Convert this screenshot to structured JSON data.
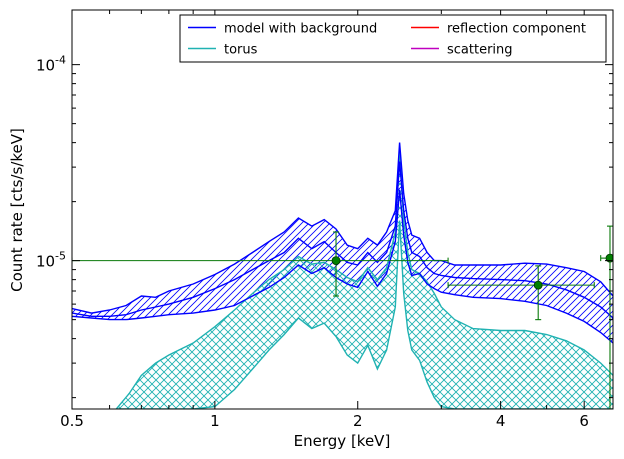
{
  "chart_data": {
    "type": "line",
    "title": "",
    "xlabel": "Energy [keV]",
    "ylabel": "Count rate [cts/s/keV]",
    "xscale": "log",
    "yscale": "log",
    "xlim": [
      0.5,
      6.9
    ],
    "ylim": [
      1.75e-06,
      0.00019
    ],
    "grid": false,
    "legend_position": "top-right",
    "x_ticks": [
      {
        "value": 0.5,
        "label": "0.5"
      },
      {
        "value": 1,
        "label": "1"
      },
      {
        "value": 2,
        "label": "2"
      },
      {
        "value": 4,
        "label": "4"
      },
      {
        "value": 6,
        "label": "6"
      }
    ],
    "y_ticks": [
      {
        "value": 1e-05,
        "base": "10",
        "exp": "-5"
      },
      {
        "value": 0.0001,
        "base": "10",
        "exp": "-4"
      }
    ],
    "legend": [
      {
        "label": "model with background",
        "color": "#0000ff"
      },
      {
        "label": "torus",
        "color": "#20b2b2"
      },
      {
        "label": "reflection component",
        "color": "#ff0000"
      },
      {
        "label": "scattering",
        "color": "#bf00bf"
      }
    ],
    "series": [
      {
        "name": "model with background",
        "color": "#0000ff",
        "style": "hatched-band",
        "x": [
          0.5,
          0.55,
          0.6,
          0.65,
          0.7,
          0.75,
          0.8,
          0.9,
          1.0,
          1.1,
          1.2,
          1.3,
          1.4,
          1.5,
          1.6,
          1.7,
          1.8,
          1.9,
          2.0,
          2.1,
          2.2,
          2.3,
          2.4,
          2.45,
          2.5,
          2.55,
          2.6,
          2.7,
          2.8,
          2.9,
          3.0,
          3.2,
          3.5,
          4.0,
          4.5,
          5.0,
          5.5,
          6.0,
          6.5,
          6.9
        ],
        "upper": [
          5.7e-06,
          5.4e-06,
          5.6e-06,
          5.9e-06,
          6.6e-06,
          6.5e-06,
          7e-06,
          7.6e-06,
          8.5e-06,
          9.6e-06,
          1.1e-05,
          1.25e-05,
          1.4e-05,
          1.65e-05,
          1.5e-05,
          1.62e-05,
          1.45e-05,
          1.2e-05,
          1.15e-05,
          1.3e-05,
          1.2e-05,
          1.4e-05,
          1.8e-05,
          4e-05,
          2.2e-05,
          1.6e-05,
          1.35e-05,
          1.3e-05,
          1.1e-05,
          1e-05,
          1e-05,
          9.5e-06,
          9.5e-06,
          9.5e-06,
          9.7e-06,
          9.6e-06,
          9.2e-06,
          8.8e-06,
          7.8e-06,
          6.6e-06
        ],
        "lower": [
          5.2e-06,
          5.1e-06,
          5e-06,
          5e-06,
          5.1e-06,
          5.2e-06,
          5.3e-06,
          5.4e-06,
          5.6e-06,
          5.9e-06,
          6.6e-06,
          7.3e-06,
          8.2e-06,
          9.5e-06,
          8.6e-06,
          9.2e-06,
          8.2e-06,
          7.6e-06,
          7.3e-06,
          8.8e-06,
          7.4e-06,
          8.6e-06,
          1.25e-05,
          2.3e-05,
          1.35e-05,
          9.8e-06,
          8.4e-06,
          8.6e-06,
          7.6e-06,
          7.2e-06,
          6.9e-06,
          6.7e-06,
          6.5e-06,
          6.4e-06,
          6.2e-06,
          5.9e-06,
          5.4e-06,
          4.9e-06,
          4.3e-06,
          3.8e-06
        ],
        "mid": [
          5.4e-06,
          5.2e-06,
          5.2e-06,
          5.3e-06,
          5.6e-06,
          5.8e-06,
          6e-06,
          6.5e-06,
          7.2e-06,
          8e-06,
          9e-06,
          1e-05,
          1.1e-05,
          1.3e-05,
          1.15e-05,
          1.25e-05,
          1.1e-05,
          9.8e-06,
          9.5e-06,
          1.1e-05,
          9.8e-06,
          1.1e-05,
          1.5e-05,
          3.2e-05,
          1.8e-05,
          1.3e-05,
          1.1e-05,
          1.05e-05,
          9.2e-06,
          8.6e-06,
          8.4e-06,
          8.2e-06,
          8.1e-06,
          8e-06,
          7.9e-06,
          7.6e-06,
          7.1e-06,
          6.5e-06,
          5.8e-06,
          5.1e-06
        ]
      },
      {
        "name": "torus",
        "color": "#20b2b2",
        "style": "crosshatched-band",
        "x": [
          0.62,
          0.66,
          0.7,
          0.75,
          0.8,
          0.9,
          1.0,
          1.1,
          1.2,
          1.3,
          1.4,
          1.5,
          1.6,
          1.7,
          1.8,
          1.9,
          2.0,
          2.1,
          2.2,
          2.3,
          2.4,
          2.45,
          2.5,
          2.55,
          2.6,
          2.7,
          2.8,
          2.9,
          3.0,
          3.2,
          3.5,
          4.0,
          4.5,
          5.0,
          5.5,
          6.0,
          6.5,
          6.9
        ],
        "upper": [
          1.75e-06,
          2.1e-06,
          2.6e-06,
          3e-06,
          3.3e-06,
          3.8e-06,
          4.6e-06,
          5.6e-06,
          6.8e-06,
          8e-06,
          9e-06,
          1.05e-05,
          9.6e-06,
          9.8e-06,
          9e-06,
          8.2e-06,
          7.8e-06,
          9.2e-06,
          8e-06,
          9.2e-06,
          1.4e-05,
          3.6e-05,
          1.6e-05,
          1.1e-05,
          9e-06,
          8.6e-06,
          7.8e-06,
          6.8e-06,
          5.8e-06,
          5e-06,
          4.5e-06,
          4.4e-06,
          4.4e-06,
          4.2e-06,
          3.9e-06,
          3.5e-06,
          3e-06,
          2.6e-06
        ],
        "lower": [
          1.75e-06,
          1.75e-06,
          1.75e-06,
          1.75e-06,
          1.75e-06,
          1.75e-06,
          1.8e-06,
          2.2e-06,
          2.8e-06,
          3.5e-06,
          4.2e-06,
          5.1e-06,
          4.5e-06,
          4.8e-06,
          4.1e-06,
          3.3e-06,
          3e-06,
          3.7e-06,
          2.8e-06,
          3.5e-06,
          5.8e-06,
          1.6e-05,
          6.8e-06,
          4.4e-06,
          3.5e-06,
          3.1e-06,
          2.4e-06,
          2e-06,
          1.8e-06,
          1.75e-06,
          1.75e-06,
          1.75e-06,
          1.75e-06,
          1.75e-06,
          1.75e-06,
          1.75e-06,
          1.75e-06,
          1.75e-06
        ]
      }
    ],
    "points": [
      {
        "x": 1.8,
        "y": 1e-05,
        "x_err": [
          0.5,
          3.1
        ],
        "y_err": [
          6.6e-06,
          1.4e-05
        ],
        "color": "#0a7a0a"
      },
      {
        "x": 4.8,
        "y": 7.5e-06,
        "x_err": [
          3.1,
          6.3
        ],
        "y_err": [
          5e-06,
          9.4e-06
        ],
        "color": "#0a7a0a"
      },
      {
        "x": 6.8,
        "y": 1.03e-05,
        "x_err": [
          6.5,
          6.9
        ],
        "y_err": [
          1.75e-06,
          1.5e-05
        ],
        "color": "#0a7a0a"
      }
    ]
  }
}
